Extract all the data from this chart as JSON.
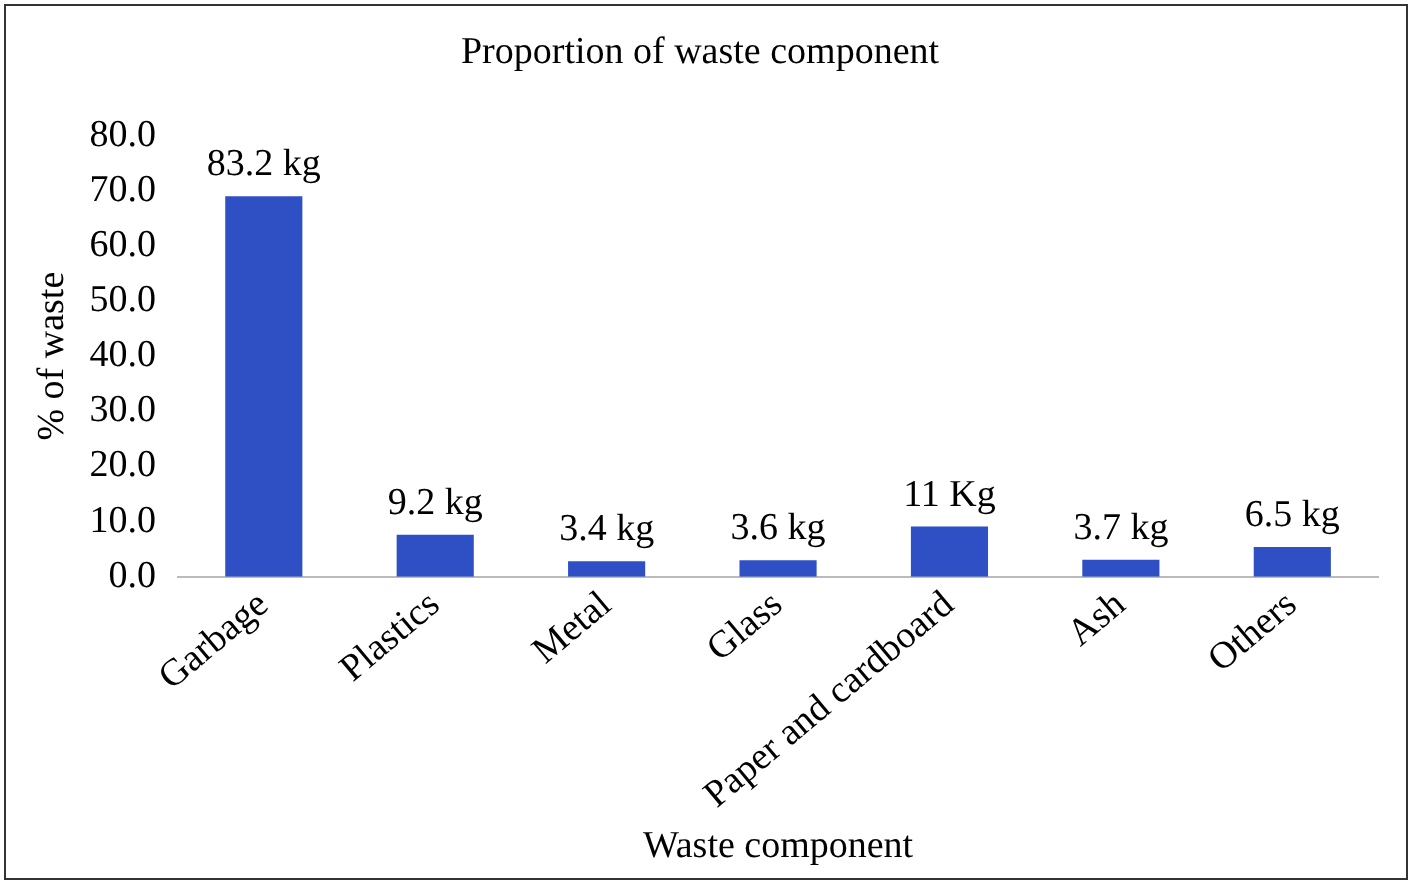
{
  "chart_data": {
    "type": "bar",
    "title": "Proportion of waste component",
    "xlabel": "Waste component",
    "ylabel": "% of waste",
    "categories": [
      "Garbage",
      "Plastics",
      "Metal",
      "Glass",
      "Paper and cardboard",
      "Ash",
      "Others"
    ],
    "values": [
      69.0,
      7.6,
      2.8,
      3.0,
      9.1,
      3.1,
      5.4
    ],
    "annotations": [
      {
        "text": "83.2 kg",
        "x": "Garbage",
        "y": 69.0
      },
      {
        "text": "9.2 kg",
        "x": "Plastics",
        "y": 7.6
      },
      {
        "text": "3.4 kg",
        "x": "Metal",
        "y": 2.8
      },
      {
        "text": "3.6 kg",
        "x": "Glass",
        "y": 3.0
      },
      {
        "text": "11 Kg",
        "x": "Paper and cardboard",
        "y": 9.1
      },
      {
        "text": "3.7 kg",
        "x": "Ash",
        "y": 3.1
      },
      {
        "text": "6.5 kg",
        "x": "Others",
        "y": 5.4
      }
    ],
    "color": "#2f4fc4",
    "ylim": [
      0,
      80
    ],
    "yticks": [
      {
        "value": 0,
        "label": "0.0"
      },
      {
        "value": 10,
        "label": "10.0"
      },
      {
        "value": 20,
        "label": "20.0"
      },
      {
        "value": 30,
        "label": "30.0"
      },
      {
        "value": 40,
        "label": "40.0"
      },
      {
        "value": 50,
        "label": "50.0"
      },
      {
        "value": 60,
        "label": "60.0"
      },
      {
        "value": 70,
        "label": "70.0"
      },
      {
        "value": 80,
        "label": "80.0"
      }
    ],
    "grid": false,
    "legend": false
  }
}
